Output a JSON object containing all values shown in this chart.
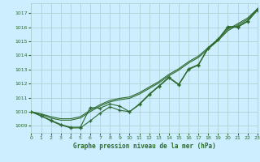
{
  "title": "Graphe pression niveau de la mer (hPa)",
  "bg_color": "#cceeff",
  "grid_color": "#aacccc",
  "line_color": "#2d6a2d",
  "xlim": [
    0,
    23
  ],
  "ylim": [
    1008.5,
    1017.7
  ],
  "yticks": [
    1009,
    1010,
    1011,
    1012,
    1013,
    1014,
    1015,
    1016,
    1017
  ],
  "xticks": [
    0,
    1,
    2,
    3,
    4,
    5,
    6,
    7,
    8,
    9,
    10,
    11,
    12,
    13,
    14,
    15,
    16,
    17,
    18,
    19,
    20,
    21,
    22,
    23
  ],
  "smooth1": [
    1010.0,
    1009.85,
    1009.65,
    1009.5,
    1009.5,
    1009.65,
    1010.1,
    1010.5,
    1010.8,
    1010.95,
    1011.05,
    1011.35,
    1011.75,
    1012.15,
    1012.65,
    1013.05,
    1013.55,
    1013.95,
    1014.55,
    1015.15,
    1015.85,
    1016.25,
    1016.65,
    1017.3
  ],
  "smooth2": [
    1010.0,
    1009.8,
    1009.55,
    1009.4,
    1009.4,
    1009.55,
    1010.0,
    1010.4,
    1010.7,
    1010.85,
    1010.95,
    1011.25,
    1011.65,
    1012.05,
    1012.55,
    1012.95,
    1013.45,
    1013.85,
    1014.45,
    1015.05,
    1015.75,
    1016.15,
    1016.55,
    1017.25
  ],
  "meas1": [
    1010.0,
    1009.7,
    1009.4,
    1009.1,
    1008.9,
    1008.9,
    1010.3,
    1010.25,
    1010.55,
    1010.4,
    1010.0,
    1010.55,
    1011.25,
    1011.85,
    1012.45,
    1011.95,
    1013.05,
    1013.35,
    1014.55,
    1015.15,
    1016.05,
    1016.05,
    1016.45,
    1017.3
  ],
  "meas2": [
    1010.0,
    1009.7,
    1009.35,
    1009.05,
    1008.85,
    1008.85,
    1009.35,
    1009.9,
    1010.35,
    1010.1,
    1010.0,
    1010.5,
    1011.2,
    1011.8,
    1012.4,
    1011.9,
    1013.0,
    1013.3,
    1014.5,
    1015.1,
    1016.0,
    1016.0,
    1016.4,
    1017.2
  ]
}
